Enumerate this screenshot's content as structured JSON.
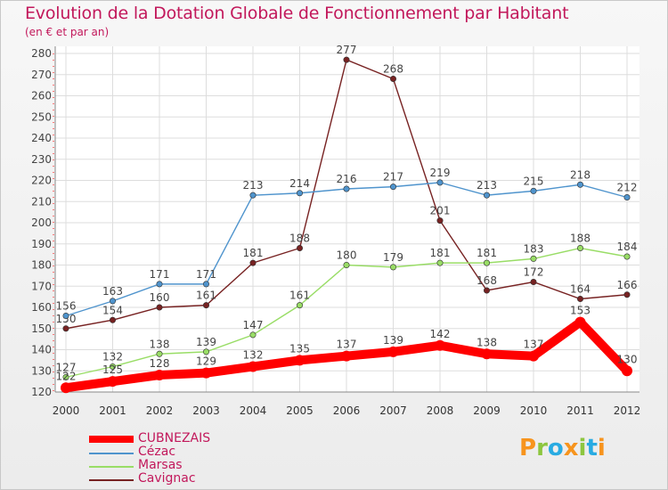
{
  "header": {
    "title": "Evolution de la Dotation Globale de Fonctionnement par Habitant",
    "subtitle": "(en € et par an)"
  },
  "logo": {
    "text": "Proxiti",
    "letters": [
      {
        "ch": "P",
        "color": "#f7941d"
      },
      {
        "ch": "r",
        "color": "#8dc63f"
      },
      {
        "ch": "o",
        "color": "#29abe2"
      },
      {
        "ch": "x",
        "color": "#f7941d"
      },
      {
        "ch": "i",
        "color": "#8dc63f"
      },
      {
        "ch": "t",
        "color": "#29abe2"
      },
      {
        "ch": "i",
        "color": "#f7941d"
      }
    ]
  },
  "chart_data": {
    "type": "line",
    "title": "Evolution de la Dotation Globale de Fonctionnement par Habitant",
    "subtitle": "(en € et par an)",
    "xlabel": "",
    "ylabel": "",
    "ylim": [
      120,
      280
    ],
    "ytick_step": 10,
    "grid": true,
    "legend_position": "bottom-left",
    "x": [
      "2000",
      "2001",
      "2002",
      "2003",
      "2004",
      "2005",
      "2006",
      "2007",
      "2008",
      "2009",
      "2010",
      "2011",
      "2012"
    ],
    "series": [
      {
        "name": "CUBNEZAIS",
        "color": "#ff0000",
        "emphasis": true,
        "values": [
          122,
          125,
          128,
          129,
          132,
          135,
          137,
          139,
          142,
          138,
          137,
          153,
          130
        ]
      },
      {
        "name": "Cézac",
        "color": "#4f94cd",
        "emphasis": false,
        "values": [
          156,
          163,
          171,
          171,
          213,
          214,
          216,
          217,
          219,
          213,
          215,
          218,
          212
        ]
      },
      {
        "name": "Marsas",
        "color": "#99dd66",
        "emphasis": false,
        "values": [
          127,
          132,
          138,
          139,
          147,
          161,
          180,
          179,
          181,
          181,
          183,
          188,
          184
        ]
      },
      {
        "name": "Cavignac",
        "color": "#772222",
        "emphasis": false,
        "values": [
          150,
          154,
          160,
          161,
          181,
          188,
          277,
          268,
          201,
          168,
          172,
          164,
          166
        ]
      }
    ]
  }
}
